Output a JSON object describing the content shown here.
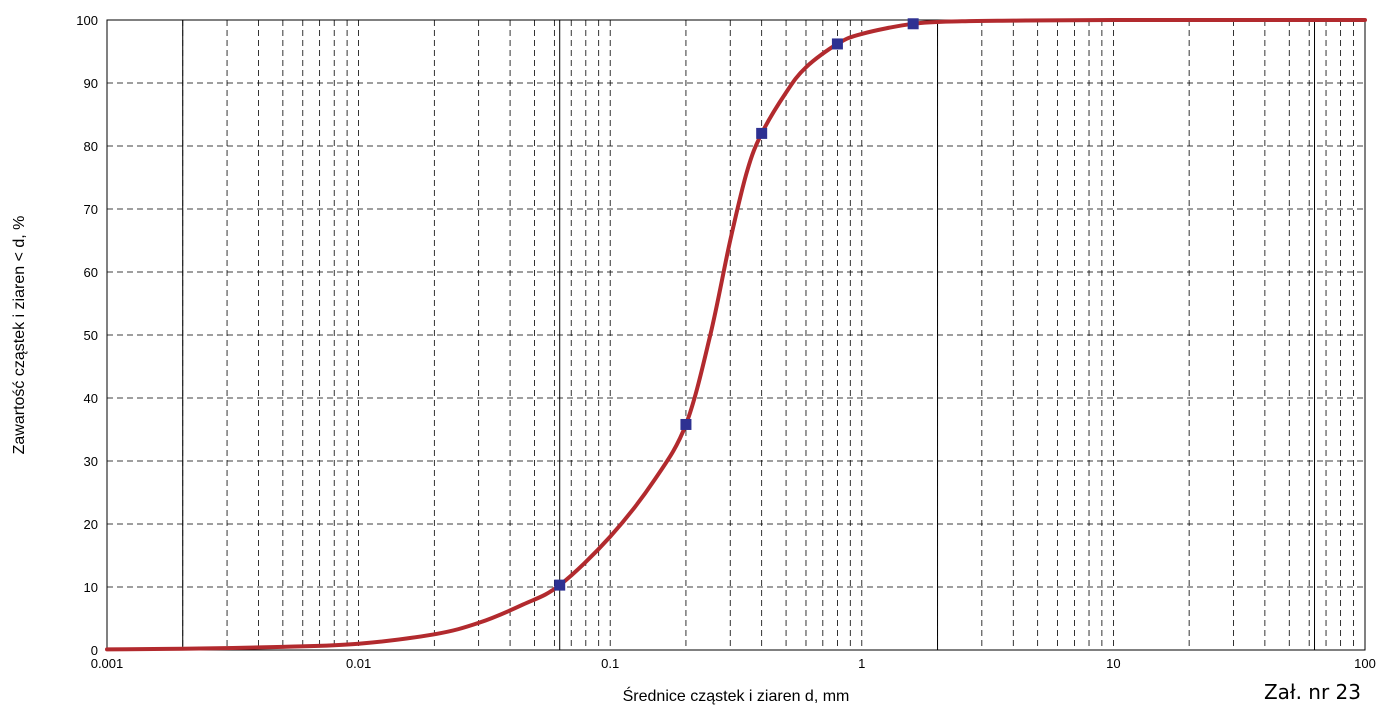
{
  "chart_data": {
    "type": "line",
    "title": "",
    "xlabel": "Średnice cząstek i ziaren d,  mm",
    "ylabel": "Zawartość cząstek i ziaren < d,  %",
    "xscale": "log",
    "xlim": [
      0.001,
      100
    ],
    "ylim": [
      0,
      100
    ],
    "x_tick_labels": [
      "0.001",
      "0.01",
      "0.1",
      "1",
      "10",
      "100"
    ],
    "y_tick_labels": [
      "0",
      "10",
      "20",
      "30",
      "40",
      "50",
      "60",
      "70",
      "80",
      "90",
      "100"
    ],
    "grid": true,
    "major_vlines": [
      0.002,
      0.063,
      2,
      63
    ],
    "series": [
      {
        "kind": "points",
        "color": "#2e3192",
        "x": [
          0.063,
          0.2,
          0.4,
          0.8,
          1.6
        ],
        "y": [
          10.3,
          35.8,
          82.0,
          96.2,
          99.4
        ]
      },
      {
        "kind": "curve",
        "color": "#b22a2e",
        "x": [
          0.001,
          0.002,
          0.005,
          0.01,
          0.02,
          0.03,
          0.045,
          0.063,
          0.1,
          0.15,
          0.2,
          0.25,
          0.3,
          0.35,
          0.4,
          0.5,
          0.6,
          0.8,
          1.0,
          1.6,
          2.5,
          4,
          10,
          100
        ],
        "y": [
          0.1,
          0.2,
          0.5,
          1.0,
          2.5,
          4.3,
          7.2,
          10.3,
          18.0,
          27.0,
          35.8,
          50.0,
          65.0,
          76.0,
          82.0,
          88.5,
          92.5,
          96.2,
          97.8,
          99.4,
          99.8,
          99.9,
          100,
          100
        ]
      }
    ]
  },
  "annotation": "Zał. nr 23"
}
